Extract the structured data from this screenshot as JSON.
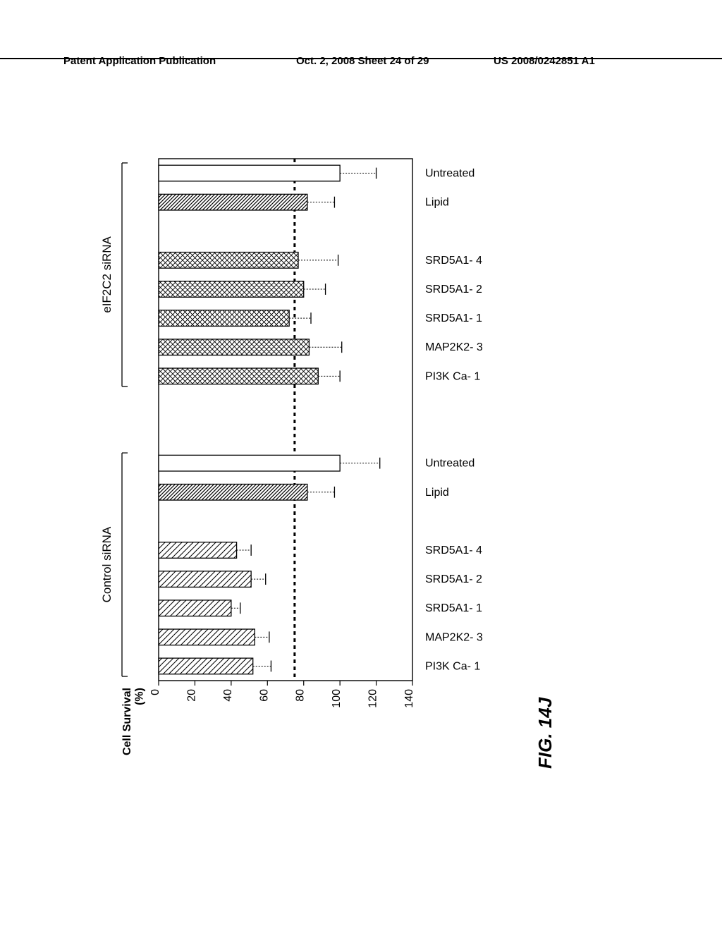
{
  "header": {
    "left": "Patent Application Publication",
    "mid": "Oct. 2, 2008  Sheet 24 of 29",
    "right": "US 2008/0242851 A1"
  },
  "figure_label": "FIG. 14J",
  "chart": {
    "type": "bar",
    "orientation": "horizontal",
    "xlabel": "Cell Survival (%)",
    "xlim": [
      0,
      140
    ],
    "xtick_step": 20,
    "xticks": [
      0,
      20,
      40,
      60,
      80,
      100,
      120,
      140
    ],
    "reference_line": 75,
    "background_color": "#ffffff",
    "axis_color": "#000000",
    "groups": [
      {
        "name": "Control siRNA",
        "bars": [
          {
            "label": "PI3K Ca- 1",
            "value": 52,
            "err": 10,
            "pattern": "diag-light"
          },
          {
            "label": "MAP2K2- 3",
            "value": 53,
            "err": 8,
            "pattern": "diag-light"
          },
          {
            "label": "SRD5A1- 1",
            "value": 40,
            "err": 5,
            "pattern": "diag-light"
          },
          {
            "label": "SRD5A1- 2",
            "value": 51,
            "err": 8,
            "pattern": "diag-light"
          },
          {
            "label": "SRD5A1- 4",
            "value": 43,
            "err": 8,
            "pattern": "diag-light"
          },
          {
            "label": "",
            "value": 0,
            "err": 0,
            "pattern": "none",
            "spacer": true
          },
          {
            "label": "Lipid",
            "value": 82,
            "err": 15,
            "pattern": "diag-dense"
          },
          {
            "label": "Untreated",
            "value": 100,
            "err": 22,
            "pattern": "open"
          }
        ]
      },
      {
        "name": "eIF2C2 siRNA",
        "bars": [
          {
            "label": "PI3K Ca- 1",
            "value": 88,
            "err": 12,
            "pattern": "cross"
          },
          {
            "label": "MAP2K2- 3",
            "value": 83,
            "err": 18,
            "pattern": "cross"
          },
          {
            "label": "SRD5A1- 1",
            "value": 72,
            "err": 12,
            "pattern": "cross"
          },
          {
            "label": "SRD5A1- 2",
            "value": 80,
            "err": 12,
            "pattern": "cross"
          },
          {
            "label": "SRD5A1- 4",
            "value": 77,
            "err": 22,
            "pattern": "cross"
          },
          {
            "label": "",
            "value": 0,
            "err": 0,
            "pattern": "none",
            "spacer": true
          },
          {
            "label": "Lipid",
            "value": 82,
            "err": 15,
            "pattern": "diag-dense"
          },
          {
            "label": "Untreated",
            "value": 100,
            "err": 20,
            "pattern": "open"
          }
        ]
      }
    ],
    "bar_stroke": "#000000",
    "bar_fill": "#ffffff",
    "font_size_axis": 16,
    "font_size_label": 16,
    "font_size_group": 17
  }
}
